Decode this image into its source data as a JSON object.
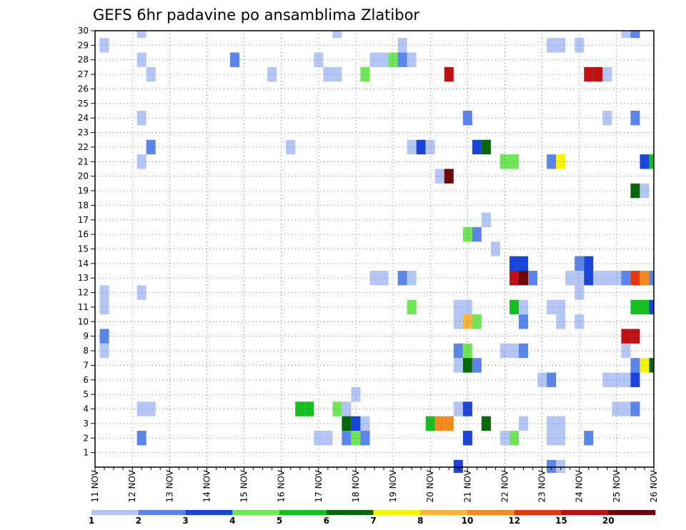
{
  "chart_data": {
    "type": "heatmap",
    "title": "GEFS 6hr padavine po ansamblima Zlatibor",
    "x_tick_labels": [
      "11 NOV",
      "12 NOV",
      "13 NOV",
      "14 NOV",
      "15 NOV",
      "16 NOV",
      "17 NOV",
      "18 NOV",
      "19 NOV",
      "20 NOV",
      "21 NOV",
      "22 NOV",
      "23 NOV",
      "24 NOV",
      "25 NOV",
      "26 NOV"
    ],
    "y_tick_labels": [
      "1",
      "2",
      "3",
      "4",
      "5",
      "6",
      "7",
      "8",
      "9",
      "10",
      "11",
      "12",
      "13",
      "14",
      "15",
      "16",
      "17",
      "18",
      "19",
      "20",
      "21",
      "22",
      "23",
      "24",
      "25",
      "26",
      "27",
      "28",
      "29",
      "30"
    ],
    "xlim": [
      0,
      60
    ],
    "ylim": [
      0,
      30
    ],
    "grid": true,
    "colorbar": {
      "labels": [
        "1",
        "2",
        "3",
        "4",
        "5",
        "6",
        "7",
        "8",
        "10",
        "12",
        "15",
        "20"
      ],
      "colors": [
        "#b3c6f5",
        "#5a85ea",
        "#1a45dc",
        "#6ee656",
        "#14c01e",
        "#096609",
        "#f5f500",
        "#f7b53b",
        "#f48a1d",
        "#e8370f",
        "#c01011",
        "#6c0808"
      ]
    },
    "cells": [
      {
        "t": 1,
        "m": 29,
        "v": 1
      },
      {
        "t": 1,
        "m": 12,
        "v": 1
      },
      {
        "t": 1,
        "m": 11,
        "v": 1
      },
      {
        "t": 1,
        "m": 9,
        "v": 2
      },
      {
        "t": 1,
        "m": 8,
        "v": 1
      },
      {
        "t": 5,
        "m": 30,
        "v": 1
      },
      {
        "t": 5,
        "m": 28,
        "v": 1
      },
      {
        "t": 5,
        "m": 24,
        "v": 1
      },
      {
        "t": 5,
        "m": 21,
        "v": 1
      },
      {
        "t": 5,
        "m": 12,
        "v": 1
      },
      {
        "t": 5,
        "m": 4,
        "v": 1
      },
      {
        "t": 5,
        "m": 2,
        "v": 2
      },
      {
        "t": 6,
        "m": 27,
        "v": 1
      },
      {
        "t": 6,
        "m": 22,
        "v": 2
      },
      {
        "t": 6,
        "m": 4,
        "v": 1
      },
      {
        "t": 15,
        "m": 28,
        "v": 2
      },
      {
        "t": 19,
        "m": 27,
        "v": 1
      },
      {
        "t": 21,
        "m": 22,
        "v": 1
      },
      {
        "t": 22,
        "m": 4,
        "v": 5
      },
      {
        "t": 23,
        "m": 4,
        "v": 5
      },
      {
        "t": 24,
        "m": 28,
        "v": 1
      },
      {
        "t": 24,
        "m": 2,
        "v": 1
      },
      {
        "t": 25,
        "m": 27,
        "v": 1
      },
      {
        "t": 25,
        "m": 2,
        "v": 1
      },
      {
        "t": 26,
        "m": 30,
        "v": 1
      },
      {
        "t": 26,
        "m": 27,
        "v": 1
      },
      {
        "t": 26,
        "m": 4,
        "v": 4
      },
      {
        "t": 27,
        "m": 4,
        "v": 1
      },
      {
        "t": 27,
        "m": 3,
        "v": 6
      },
      {
        "t": 27,
        "m": 2,
        "v": 2
      },
      {
        "t": 28,
        "m": 5,
        "v": 1
      },
      {
        "t": 28,
        "m": 3,
        "v": 3
      },
      {
        "t": 28,
        "m": 2,
        "v": 4
      },
      {
        "t": 29,
        "m": 27,
        "v": 4
      },
      {
        "t": 29,
        "m": 3,
        "v": 1
      },
      {
        "t": 29,
        "m": 2,
        "v": 2
      },
      {
        "t": 30,
        "m": 28,
        "v": 1
      },
      {
        "t": 30,
        "m": 13,
        "v": 1
      },
      {
        "t": 31,
        "m": 28,
        "v": 1
      },
      {
        "t": 31,
        "m": 13,
        "v": 1
      },
      {
        "t": 32,
        "m": 28,
        "v": 4
      },
      {
        "t": 33,
        "m": 29,
        "v": 1
      },
      {
        "t": 33,
        "m": 28,
        "v": 2
      },
      {
        "t": 33,
        "m": 13,
        "v": 2
      },
      {
        "t": 34,
        "m": 28,
        "v": 1
      },
      {
        "t": 34,
        "m": 22,
        "v": 1
      },
      {
        "t": 34,
        "m": 13,
        "v": 1
      },
      {
        "t": 34,
        "m": 11,
        "v": 4
      },
      {
        "t": 35,
        "m": 22,
        "v": 3
      },
      {
        "t": 36,
        "m": 22,
        "v": 1
      },
      {
        "t": 36,
        "m": 3,
        "v": 5
      },
      {
        "t": 37,
        "m": 20,
        "v": 1
      },
      {
        "t": 37,
        "m": 3,
        "v": 10
      },
      {
        "t": 38,
        "m": 27,
        "v": 15
      },
      {
        "t": 38,
        "m": 20,
        "v": 20
      },
      {
        "t": 38,
        "m": 3,
        "v": 10
      },
      {
        "t": 39,
        "m": 11,
        "v": 1
      },
      {
        "t": 39,
        "m": 10,
        "v": 1
      },
      {
        "t": 39,
        "m": 8,
        "v": 2
      },
      {
        "t": 39,
        "m": 7,
        "v": 1
      },
      {
        "t": 39,
        "m": 4,
        "v": 1
      },
      {
        "t": 39,
        "m": 0,
        "v": 3
      },
      {
        "t": 40,
        "m": 24,
        "v": 2
      },
      {
        "t": 40,
        "m": 16,
        "v": 4
      },
      {
        "t": 40,
        "m": 11,
        "v": 1
      },
      {
        "t": 40,
        "m": 10,
        "v": 8
      },
      {
        "t": 40,
        "m": 8,
        "v": 4
      },
      {
        "t": 40,
        "m": 7,
        "v": 6
      },
      {
        "t": 40,
        "m": 4,
        "v": 3
      },
      {
        "t": 40,
        "m": 2,
        "v": 3
      },
      {
        "t": 41,
        "m": 22,
        "v": 3
      },
      {
        "t": 41,
        "m": 16,
        "v": 2
      },
      {
        "t": 41,
        "m": 10,
        "v": 4
      },
      {
        "t": 41,
        "m": 7,
        "v": 2
      },
      {
        "t": 42,
        "m": 22,
        "v": 6
      },
      {
        "t": 42,
        "m": 17,
        "v": 1
      },
      {
        "t": 42,
        "m": 3,
        "v": 6
      },
      {
        "t": 43,
        "m": 15,
        "v": 1
      },
      {
        "t": 44,
        "m": 21,
        "v": 4
      },
      {
        "t": 44,
        "m": 8,
        "v": 1
      },
      {
        "t": 44,
        "m": 2,
        "v": 1
      },
      {
        "t": 45,
        "m": 21,
        "v": 4
      },
      {
        "t": 45,
        "m": 14,
        "v": 3
      },
      {
        "t": 45,
        "m": 13,
        "v": 15
      },
      {
        "t": 45,
        "m": 11,
        "v": 5
      },
      {
        "t": 45,
        "m": 8,
        "v": 1
      },
      {
        "t": 45,
        "m": 2,
        "v": 4
      },
      {
        "t": 46,
        "m": 14,
        "v": 3
      },
      {
        "t": 46,
        "m": 13,
        "v": 20
      },
      {
        "t": 46,
        "m": 11,
        "v": 1
      },
      {
        "t": 46,
        "m": 10,
        "v": 2
      },
      {
        "t": 46,
        "m": 8,
        "v": 2
      },
      {
        "t": 46,
        "m": 3,
        "v": 1
      },
      {
        "t": 47,
        "m": 13,
        "v": 2
      },
      {
        "t": 48,
        "m": 6,
        "v": 1
      },
      {
        "t": 49,
        "m": 29,
        "v": 1
      },
      {
        "t": 49,
        "m": 21,
        "v": 2
      },
      {
        "t": 49,
        "m": 11,
        "v": 1
      },
      {
        "t": 49,
        "m": 6,
        "v": 2
      },
      {
        "t": 49,
        "m": 3,
        "v": 1
      },
      {
        "t": 49,
        "m": 2,
        "v": 1
      },
      {
        "t": 49,
        "m": 0,
        "v": 2
      },
      {
        "t": 50,
        "m": 29,
        "v": 1
      },
      {
        "t": 50,
        "m": 21,
        "v": 7
      },
      {
        "t": 50,
        "m": 11,
        "v": 1
      },
      {
        "t": 50,
        "m": 10,
        "v": 1
      },
      {
        "t": 50,
        "m": 3,
        "v": 1
      },
      {
        "t": 50,
        "m": 2,
        "v": 1
      },
      {
        "t": 50,
        "m": 0,
        "v": 1
      },
      {
        "t": 51,
        "m": 13,
        "v": 1
      },
      {
        "t": 52,
        "m": 29,
        "v": 1
      },
      {
        "t": 52,
        "m": 14,
        "v": 2
      },
      {
        "t": 52,
        "m": 13,
        "v": 1
      },
      {
        "t": 52,
        "m": 12,
        "v": 1
      },
      {
        "t": 52,
        "m": 10,
        "v": 1
      },
      {
        "t": 53,
        "m": 27,
        "v": 15
      },
      {
        "t": 53,
        "m": 14,
        "v": 3
      },
      {
        "t": 53,
        "m": 13,
        "v": 3
      },
      {
        "t": 53,
        "m": 2,
        "v": 2
      },
      {
        "t": 54,
        "m": 27,
        "v": 15
      },
      {
        "t": 54,
        "m": 13,
        "v": 1
      },
      {
        "t": 55,
        "m": 27,
        "v": 1
      },
      {
        "t": 55,
        "m": 24,
        "v": 1
      },
      {
        "t": 55,
        "m": 13,
        "v": 1
      },
      {
        "t": 55,
        "m": 6,
        "v": 1
      },
      {
        "t": 56,
        "m": 13,
        "v": 1
      },
      {
        "t": 56,
        "m": 6,
        "v": 1
      },
      {
        "t": 56,
        "m": 4,
        "v": 1
      },
      {
        "t": 57,
        "m": 30,
        "v": 1
      },
      {
        "t": 57,
        "m": 13,
        "v": 2
      },
      {
        "t": 57,
        "m": 9,
        "v": 15
      },
      {
        "t": 57,
        "m": 8,
        "v": 1
      },
      {
        "t": 57,
        "m": 6,
        "v": 1
      },
      {
        "t": 57,
        "m": 4,
        "v": 1
      },
      {
        "t": 58,
        "m": 30,
        "v": 2
      },
      {
        "t": 58,
        "m": 24,
        "v": 2
      },
      {
        "t": 58,
        "m": 19,
        "v": 6
      },
      {
        "t": 58,
        "m": 13,
        "v": 12
      },
      {
        "t": 58,
        "m": 11,
        "v": 5
      },
      {
        "t": 58,
        "m": 9,
        "v": 15
      },
      {
        "t": 58,
        "m": 7,
        "v": 2
      },
      {
        "t": 58,
        "m": 6,
        "v": 3
      },
      {
        "t": 58,
        "m": 4,
        "v": 2
      },
      {
        "t": 59,
        "m": 19,
        "v": 1
      },
      {
        "t": 59,
        "m": 13,
        "v": 10
      },
      {
        "t": 59,
        "m": 11,
        "v": 5
      },
      {
        "t": 59,
        "m": 7,
        "v": 7
      },
      {
        "t": 59,
        "m": 21,
        "v": 3
      },
      {
        "t": 60,
        "m": 21,
        "v": 5
      },
      {
        "t": 60,
        "m": 13,
        "v": 2
      },
      {
        "t": 60,
        "m": 11,
        "v": 3
      },
      {
        "t": 60,
        "m": 7,
        "v": 6
      }
    ]
  }
}
